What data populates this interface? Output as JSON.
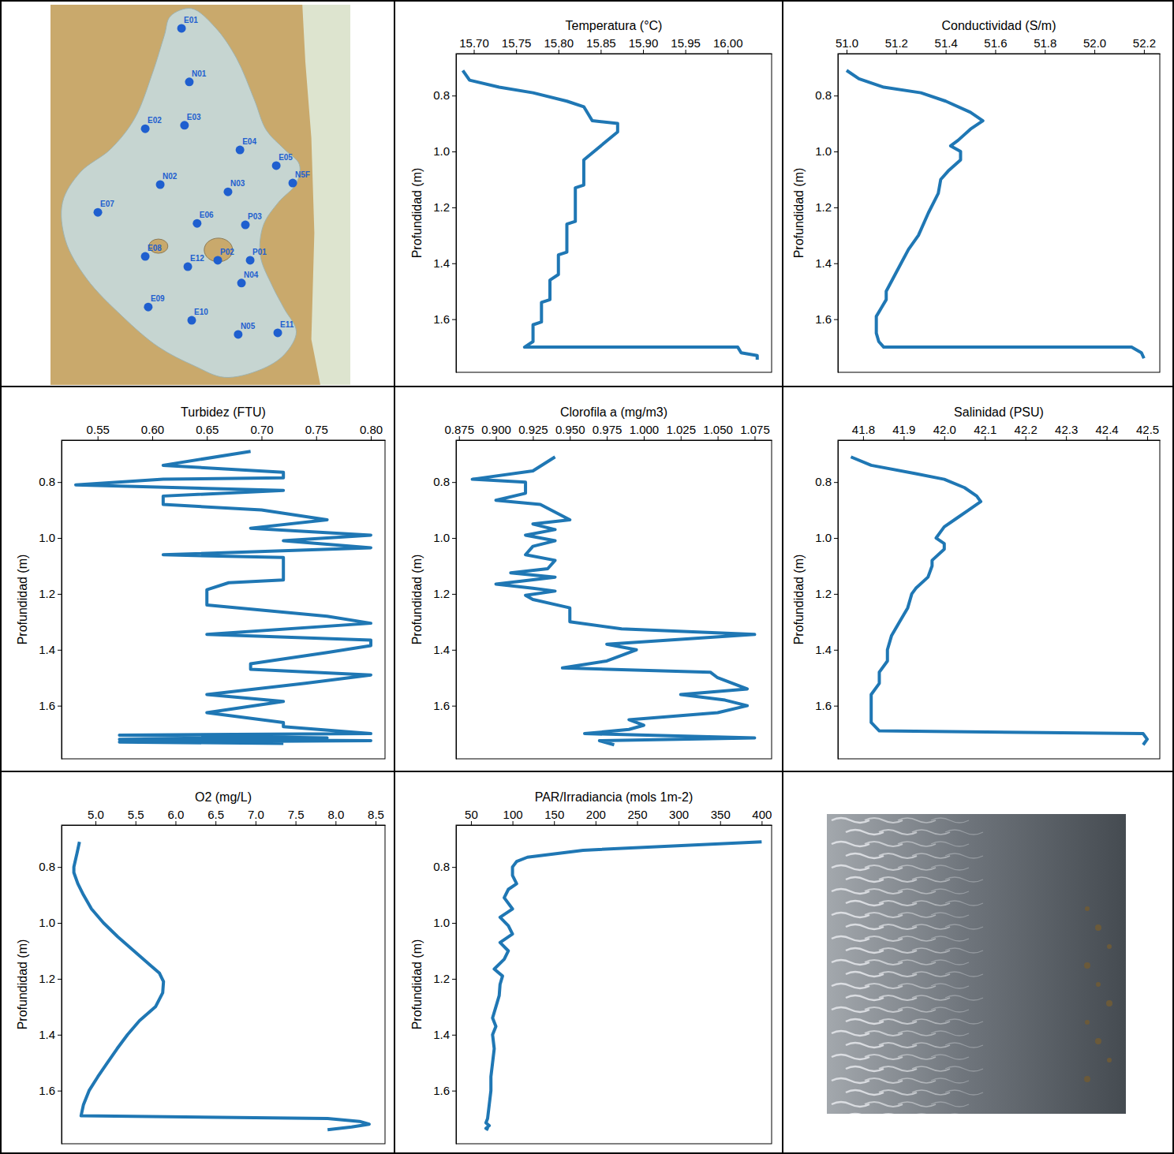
{
  "chart_data": [
    {
      "type": "map",
      "color": "#1f5fcf",
      "labels": [
        "E01",
        "N01",
        "E02",
        "E03",
        "E04",
        "E05",
        "N5F",
        "N02",
        "N03",
        "E07",
        "E06",
        "P03",
        "E08",
        "E12",
        "P02",
        "P01",
        "N04",
        "E09",
        "E10",
        "N05",
        "E11"
      ],
      "x": [
        0.437,
        0.463,
        0.316,
        0.447,
        0.632,
        0.753,
        0.808,
        0.366,
        0.592,
        0.158,
        0.489,
        0.65,
        0.316,
        0.458,
        0.558,
        0.666,
        0.637,
        0.326,
        0.471,
        0.626,
        0.758
      ],
      "y": [
        0.062,
        0.203,
        0.326,
        0.317,
        0.382,
        0.423,
        0.469,
        0.473,
        0.492,
        0.546,
        0.575,
        0.579,
        0.662,
        0.689,
        0.672,
        0.672,
        0.732,
        0.795,
        0.83,
        0.867,
        0.863
      ],
      "xlim": [
        0,
        1
      ],
      "ylim": [
        1,
        0
      ],
      "tick_labels": false
    },
    {
      "type": "line",
      "xlabel": "Temperatura (°C)",
      "ylabel": "Profundidad (m)",
      "color": "#1f77b4",
      "x": [
        15.687,
        15.695,
        15.73,
        15.77,
        15.81,
        15.83,
        15.84,
        15.87,
        15.87,
        15.83,
        15.83,
        15.82,
        15.82,
        15.81,
        15.81,
        15.8,
        15.8,
        15.79,
        15.79,
        15.78,
        15.78,
        15.77,
        15.77,
        15.76,
        16.012,
        16.016,
        16.035,
        16.035
      ],
      "y": [
        0.71,
        0.745,
        0.77,
        0.79,
        0.82,
        0.84,
        0.89,
        0.9,
        0.93,
        1.03,
        1.12,
        1.13,
        1.25,
        1.26,
        1.36,
        1.37,
        1.44,
        1.46,
        1.53,
        1.54,
        1.61,
        1.62,
        1.68,
        1.7,
        1.7,
        1.72,
        1.73,
        1.745
      ],
      "xlim": [
        15.679,
        16.052
      ],
      "ylim": [
        1.79,
        0.65
      ],
      "xticks": [
        {
          "value": 15.7,
          "label": "15.70"
        },
        15.75,
        {
          "value": 15.8,
          "label": "15.80"
        },
        15.85,
        {
          "value": 15.9,
          "label": "15.90"
        },
        15.95,
        {
          "value": 16,
          "label": "16.00"
        }
      ],
      "yticks": [
        0.8,
        {
          "value": 1,
          "label": "1.0"
        },
        1.2,
        1.4,
        1.6
      ]
    },
    {
      "type": "line",
      "xlabel": "Conductividad (S/m)",
      "ylabel": "Profundidad (m)",
      "color": "#1f77b4",
      "x": [
        51.0,
        51.05,
        51.15,
        51.3,
        51.4,
        51.5,
        51.55,
        51.5,
        51.45,
        51.42,
        51.46,
        51.46,
        51.41,
        51.38,
        51.37,
        51.33,
        51.29,
        51.25,
        51.22,
        51.19,
        51.16,
        51.16,
        51.14,
        51.12,
        51.12,
        51.13,
        51.15,
        52.15,
        52.19,
        52.2
      ],
      "y": [
        0.71,
        0.74,
        0.77,
        0.79,
        0.82,
        0.86,
        0.89,
        0.92,
        0.96,
        0.98,
        1.0,
        1.03,
        1.07,
        1.1,
        1.15,
        1.22,
        1.3,
        1.35,
        1.4,
        1.45,
        1.5,
        1.53,
        1.56,
        1.59,
        1.65,
        1.68,
        1.7,
        1.7,
        1.72,
        1.74
      ],
      "xlim": [
        50.965,
        52.264
      ],
      "ylim": [
        1.79,
        0.65
      ],
      "xticks": [
        {
          "value": 51,
          "label": "51.0"
        },
        51.2,
        51.4,
        51.6,
        51.8,
        {
          "value": 52,
          "label": "52.0"
        },
        52.2
      ],
      "yticks": [
        0.8,
        {
          "value": 1,
          "label": "1.0"
        },
        1.2,
        1.4,
        1.6
      ]
    },
    {
      "type": "line",
      "xlabel": "Turbidez (FTU)",
      "ylabel": "Profundidad (m)",
      "color": "#1f77b4",
      "x": [
        0.69,
        0.61,
        0.72,
        0.72,
        0.61,
        0.53,
        0.72,
        0.61,
        0.61,
        0.7,
        0.76,
        0.69,
        0.8,
        0.72,
        0.8,
        0.61,
        0.72,
        0.72,
        0.67,
        0.65,
        0.65,
        0.76,
        0.8,
        0.65,
        0.8,
        0.8,
        0.76,
        0.69,
        0.69,
        0.8,
        0.74,
        0.65,
        0.72,
        0.65,
        0.72,
        0.72,
        0.8,
        0.57,
        0.76,
        0.57,
        0.8,
        0.57,
        0.72
      ],
      "y": [
        0.69,
        0.74,
        0.765,
        0.785,
        0.79,
        0.81,
        0.83,
        0.85,
        0.88,
        0.9,
        0.935,
        0.965,
        0.99,
        1.01,
        1.035,
        1.06,
        1.07,
        1.15,
        1.16,
        1.185,
        1.24,
        1.28,
        1.305,
        1.345,
        1.365,
        1.385,
        1.41,
        1.45,
        1.47,
        1.49,
        1.52,
        1.56,
        1.585,
        1.625,
        1.66,
        1.675,
        1.7,
        1.705,
        1.715,
        1.72,
        1.725,
        1.73,
        1.735
      ],
      "xlim": [
        0.517,
        0.813
      ],
      "ylim": [
        1.79,
        0.65
      ],
      "xticks": [
        0.55,
        {
          "value": 0.6,
          "label": "0.60"
        },
        0.65,
        {
          "value": 0.7,
          "label": "0.70"
        },
        0.75,
        {
          "value": 0.8,
          "label": "0.80"
        }
      ],
      "yticks": [
        0.8,
        {
          "value": 1,
          "label": "1.0"
        },
        1.2,
        1.4,
        1.6
      ]
    },
    {
      "type": "line",
      "xlabel": "Clorofila a (mg/m3)",
      "ylabel": "Profundidad (m)",
      "color": "#1f77b4",
      "x": [
        0.94,
        0.925,
        0.884,
        0.92,
        0.92,
        0.92,
        0.9,
        0.93,
        0.95,
        0.925,
        0.94,
        0.92,
        0.94,
        0.925,
        0.92,
        0.94,
        0.935,
        0.91,
        0.94,
        0.9,
        0.925,
        0.94,
        0.92,
        0.925,
        0.95,
        0.95,
        0.985,
        1.075,
        0.975,
        0.995,
        0.975,
        0.945,
        1.045,
        1.05,
        1.07,
        1.025,
        1.055,
        1.07,
        1.05,
        0.99,
        1.0,
        0.99,
        0.96,
        1.075,
        0.97,
        0.98
      ],
      "y": [
        0.71,
        0.76,
        0.79,
        0.8,
        0.82,
        0.84,
        0.865,
        0.88,
        0.935,
        0.95,
        0.97,
        0.99,
        1.01,
        1.03,
        1.06,
        1.08,
        1.11,
        1.125,
        1.14,
        1.165,
        1.18,
        1.19,
        1.205,
        1.22,
        1.25,
        1.3,
        1.325,
        1.345,
        1.38,
        1.4,
        1.44,
        1.465,
        1.48,
        1.5,
        1.54,
        1.56,
        1.58,
        1.6,
        1.625,
        1.65,
        1.67,
        1.685,
        1.7,
        1.715,
        1.725,
        1.74
      ],
      "xlim": [
        0.873,
        1.0865
      ],
      "ylim": [
        1.79,
        0.65
      ],
      "xticks": [
        0.875,
        {
          "value": 0.9,
          "label": "0.900"
        },
        0.925,
        {
          "value": 0.95,
          "label": "0.950"
        },
        0.975,
        {
          "value": 1,
          "label": "1.000"
        },
        1.025,
        {
          "value": 1.05,
          "label": "1.050"
        },
        1.075
      ],
      "yticks": [
        0.8,
        {
          "value": 1,
          "label": "1.0"
        },
        1.2,
        1.4,
        1.6
      ]
    },
    {
      "type": "line",
      "xlabel": "Salinidad (PSU)",
      "ylabel": "Profundidad (m)",
      "color": "#1f77b4",
      "x": [
        41.77,
        41.82,
        41.93,
        42.0,
        42.05,
        42.08,
        42.09,
        42.06,
        42.03,
        42.0,
        41.99,
        41.98,
        42.0,
        42.0,
        41.97,
        41.97,
        41.96,
        41.93,
        41.92,
        41.91,
        41.89,
        41.87,
        41.86,
        41.86,
        41.84,
        41.84,
        41.82,
        41.82,
        41.82,
        41.84,
        42.49,
        42.5,
        42.49
      ],
      "y": [
        0.71,
        0.74,
        0.77,
        0.79,
        0.82,
        0.85,
        0.87,
        0.9,
        0.93,
        0.96,
        0.98,
        1.0,
        1.02,
        1.04,
        1.08,
        1.1,
        1.14,
        1.18,
        1.2,
        1.25,
        1.3,
        1.35,
        1.4,
        1.44,
        1.48,
        1.52,
        1.56,
        1.6,
        1.66,
        1.69,
        1.7,
        1.72,
        1.74
      ],
      "xlim": [
        41.738,
        42.531
      ],
      "ylim": [
        1.79,
        0.65
      ],
      "xticks": [
        41.8,
        41.9,
        {
          "value": 42,
          "label": "42.0"
        },
        42.1,
        42.2,
        42.3,
        42.4,
        42.5
      ],
      "yticks": [
        0.8,
        {
          "value": 1,
          "label": "1.0"
        },
        1.2,
        1.4,
        1.6
      ]
    },
    {
      "type": "line",
      "xlabel": "O2 (mg/L)",
      "ylabel": "Profundidad (m)",
      "color": "#1f77b4",
      "x": [
        4.8,
        4.77,
        4.73,
        4.73,
        4.78,
        4.85,
        4.95,
        5.1,
        5.28,
        5.48,
        5.68,
        5.8,
        5.85,
        5.84,
        5.75,
        5.55,
        5.4,
        5.27,
        5.15,
        5.03,
        4.92,
        4.85,
        4.82,
        7.9,
        8.3,
        8.42,
        8.2,
        7.9
      ],
      "y": [
        0.71,
        0.75,
        0.8,
        0.82,
        0.86,
        0.9,
        0.95,
        1.0,
        1.05,
        1.1,
        1.15,
        1.18,
        1.21,
        1.25,
        1.3,
        1.35,
        1.4,
        1.45,
        1.5,
        1.55,
        1.6,
        1.65,
        1.69,
        1.7,
        1.71,
        1.72,
        1.73,
        1.74
      ],
      "xlim": [
        4.576,
        8.618
      ],
      "ylim": [
        1.79,
        0.65
      ],
      "xticks": [
        {
          "value": 5,
          "label": "5.0"
        },
        5.5,
        {
          "value": 6,
          "label": "6.0"
        },
        6.5,
        {
          "value": 7,
          "label": "7.0"
        },
        7.5,
        {
          "value": 8,
          "label": "8.0"
        },
        8.5
      ],
      "yticks": [
        0.8,
        {
          "value": 1,
          "label": "1.0"
        },
        1.2,
        1.4,
        1.6
      ]
    },
    {
      "type": "line",
      "xlabel": "PAR/Irradiancia (mols 1m-2)",
      "ylabel": "Profundidad (m)",
      "color": "#1f77b4",
      "x": [
        400,
        185,
        118,
        105,
        100,
        100,
        105,
        95,
        90,
        100,
        85,
        95,
        100,
        85,
        95,
        90,
        78,
        88,
        85,
        84,
        80,
        76,
        80,
        76,
        78,
        76,
        74,
        74,
        72,
        70,
        68,
        72,
        68,
        71
      ],
      "y": [
        0.71,
        0.74,
        0.765,
        0.78,
        0.8,
        0.83,
        0.86,
        0.88,
        0.91,
        0.95,
        0.98,
        1.01,
        1.04,
        1.07,
        1.1,
        1.13,
        1.165,
        1.19,
        1.22,
        1.26,
        1.3,
        1.34,
        1.37,
        1.4,
        1.45,
        1.5,
        1.55,
        1.6,
        1.65,
        1.7,
        1.715,
        1.725,
        1.735,
        1.74
      ],
      "xlim": [
        32,
        412
      ],
      "ylim": [
        1.79,
        0.65
      ],
      "xticks": [
        50,
        100,
        150,
        200,
        250,
        300,
        350,
        400
      ],
      "yticks": [
        0.8,
        {
          "value": 1,
          "label": "1.0"
        },
        1.2,
        1.4,
        1.6
      ]
    }
  ]
}
